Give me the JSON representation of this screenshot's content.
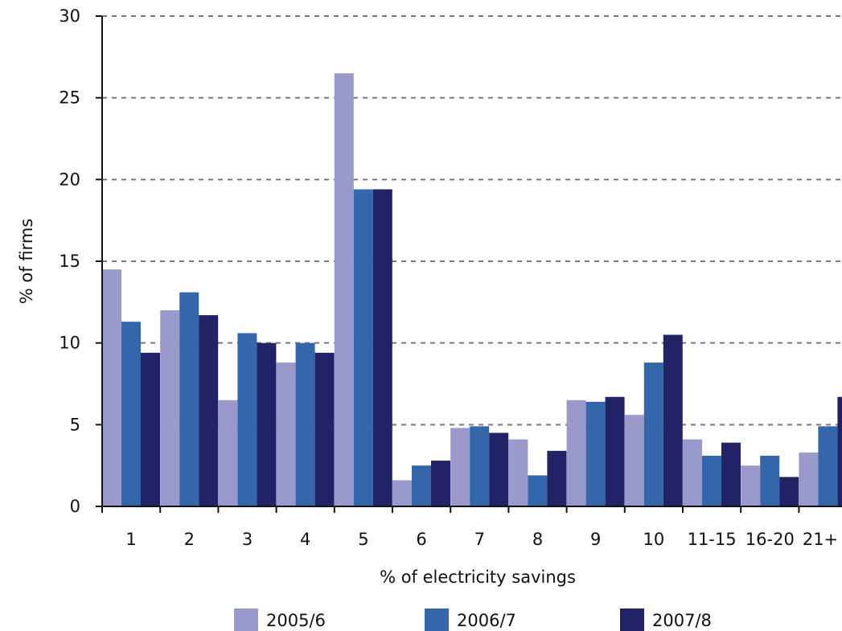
{
  "chart_data": {
    "type": "bar",
    "title": "",
    "xlabel": "% of electricity savings",
    "ylabel": "% of firms",
    "ylim": [
      0,
      30
    ],
    "yticks": [
      0,
      5,
      10,
      15,
      20,
      25,
      30
    ],
    "grid": true,
    "legend_position": "bottom",
    "categories": [
      "1",
      "2",
      "3",
      "4",
      "5",
      "6",
      "7",
      "8",
      "9",
      "10",
      "11-15",
      "16-20",
      "21+"
    ],
    "series": [
      {
        "name": "2005/6",
        "color": "#9999cc",
        "values": [
          14.5,
          12.0,
          6.5,
          8.8,
          26.5,
          1.6,
          4.8,
          4.1,
          6.5,
          5.6,
          4.1,
          2.5,
          3.3
        ]
      },
      {
        "name": "2006/7",
        "color": "#3366aa",
        "values": [
          11.3,
          13.1,
          10.6,
          10.0,
          19.4,
          2.5,
          4.9,
          1.9,
          6.4,
          8.8,
          3.1,
          3.1,
          4.9
        ]
      },
      {
        "name": "2007/8",
        "color": "#222266",
        "values": [
          9.4,
          11.7,
          10.0,
          9.4,
          19.4,
          2.8,
          4.5,
          3.4,
          6.7,
          10.5,
          3.9,
          1.8,
          6.7
        ]
      }
    ]
  }
}
